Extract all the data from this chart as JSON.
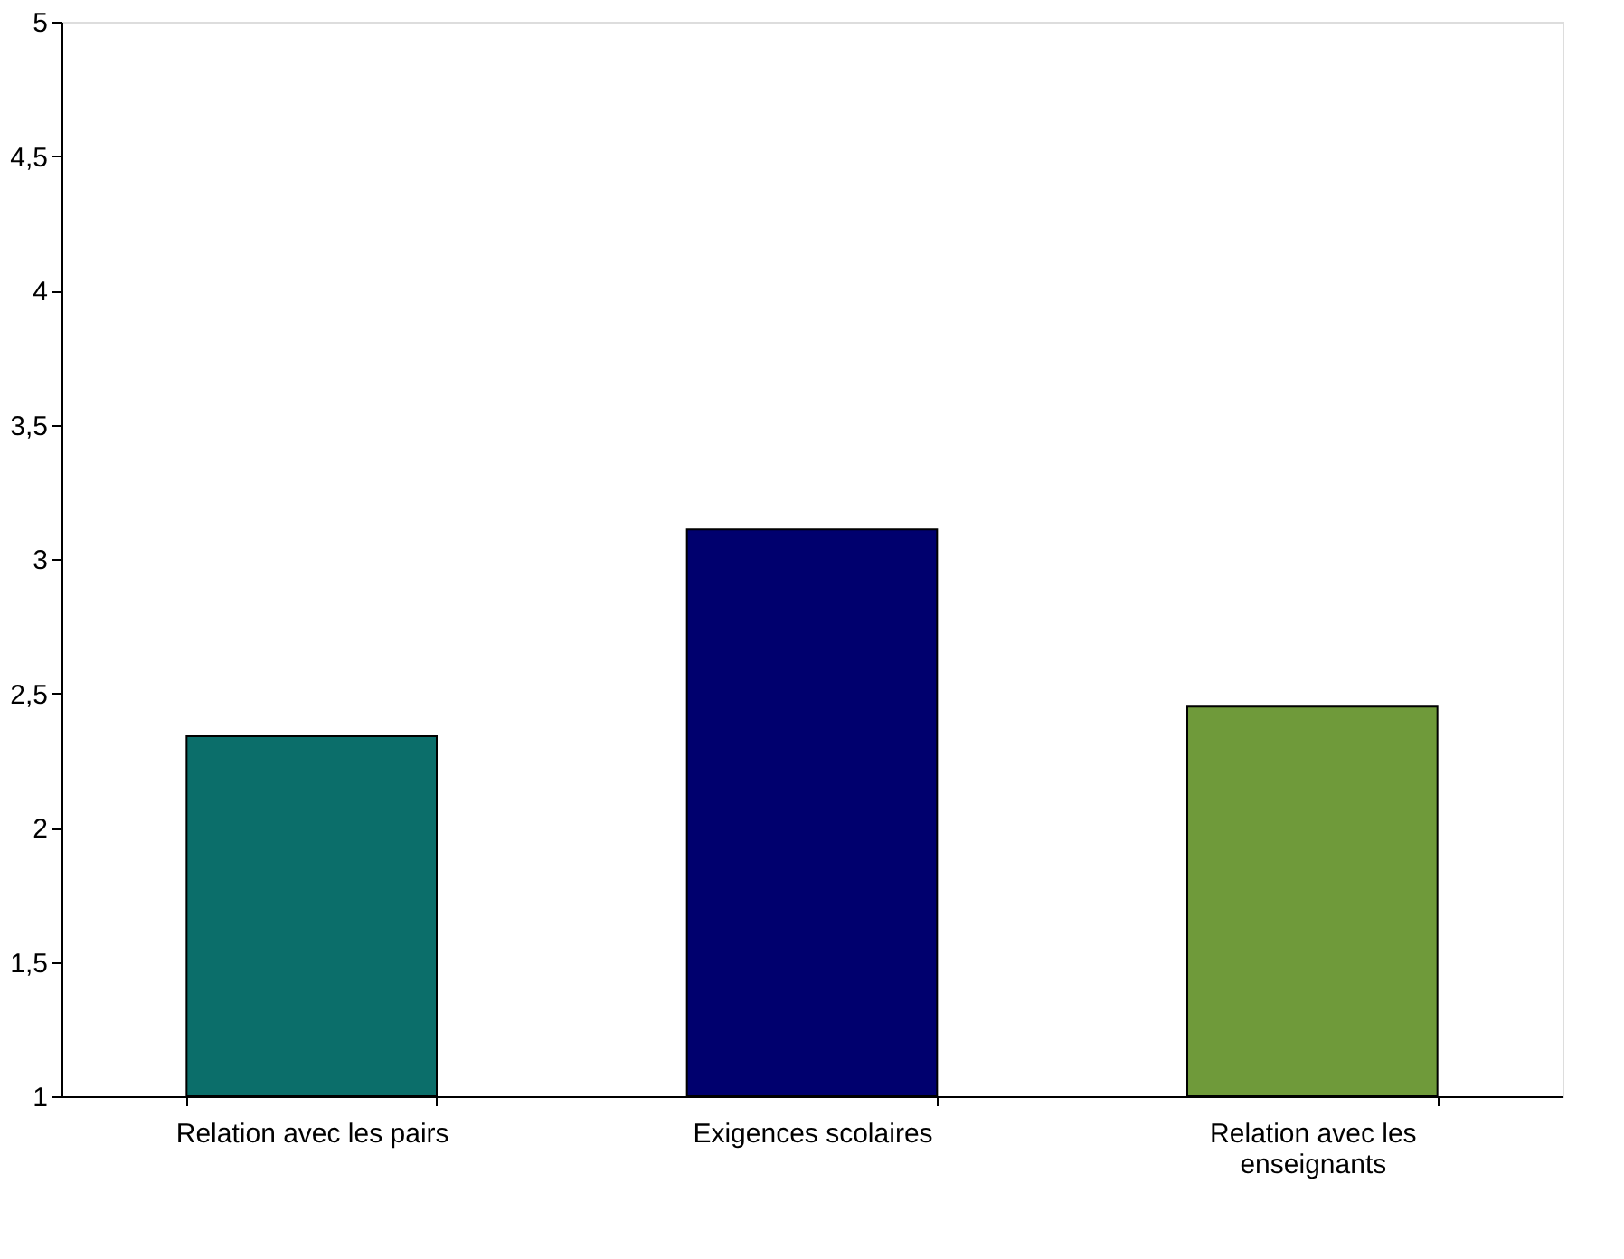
{
  "chart_data": {
    "type": "bar",
    "categories": [
      "Relation avec les pairs",
      "Exigences scolaires",
      "Relation avec les enseignants"
    ],
    "values": [
      2.34,
      3.11,
      2.45
    ],
    "colors": [
      "#0b6e6a",
      "#00006e",
      "#6f9a3a"
    ],
    "ylim": [
      1,
      5
    ],
    "yticks": [
      1,
      {
        "value": 1.5,
        "label": "1,5"
      },
      2,
      {
        "value": 2.5,
        "label": "2,5"
      },
      3,
      {
        "value": 3.5,
        "label": "3,5"
      },
      4,
      {
        "value": 4.5,
        "label": "4,5"
      },
      5
    ],
    "grid": false
  }
}
